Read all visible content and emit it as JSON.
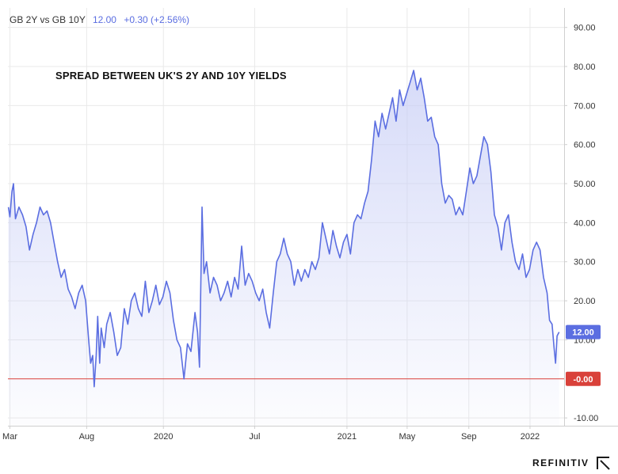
{
  "legend": {
    "symbol": "GB 2Y vs GB 10Y",
    "last": "12.00",
    "change": "+0.30 (+2.56%)"
  },
  "brand": "REFINITIV",
  "colors": {
    "line": "#5b6ee1",
    "fill_top": "#c9cff6",
    "zero_line": "#d9413a",
    "last_badge": "#5b6ee1",
    "zero_badge": "#d9413a",
    "grid": "#e9e9e9"
  },
  "chart_data": {
    "type": "area",
    "title": "SPREAD BETWEEN UK'S 2Y AND 10Y YIELDS",
    "xlabel": "",
    "ylabel": "",
    "ylim": [
      -12,
      95
    ],
    "yticks": [
      "90.00",
      "80.00",
      "70.00",
      "60.00",
      "50.00",
      "40.00",
      "30.00",
      "20.00",
      "10.00",
      "-10.00"
    ],
    "ytick_values": [
      90,
      80,
      70,
      60,
      50,
      40,
      30,
      20,
      10,
      -10
    ],
    "xlim": [
      "2019-02-25",
      "2022-03-10"
    ],
    "xticks": [
      {
        "label": "Mar",
        "date": "2019-03-01"
      },
      {
        "label": "Aug",
        "date": "2019-08-01"
      },
      {
        "label": "2020",
        "date": "2020-01-01"
      },
      {
        "label": "Jul",
        "date": "2020-07-01"
      },
      {
        "label": "2021",
        "date": "2021-01-01"
      },
      {
        "label": "May",
        "date": "2021-05-01"
      },
      {
        "label": "Sep",
        "date": "2021-09-01"
      },
      {
        "label": "2022",
        "date": "2022-01-01"
      }
    ],
    "last_value": "12.00",
    "zero_label": "-0.00",
    "reference_line": 0,
    "grid": true,
    "series": [
      {
        "points": [
          [
            "2019-02-26",
            44
          ],
          [
            "2019-03-01",
            41.5
          ],
          [
            "2019-03-05",
            48
          ],
          [
            "2019-03-08",
            50
          ],
          [
            "2019-03-12",
            41
          ],
          [
            "2019-03-19",
            44
          ],
          [
            "2019-03-26",
            42
          ],
          [
            "2019-04-02",
            39
          ],
          [
            "2019-04-09",
            33
          ],
          [
            "2019-04-16",
            37
          ],
          [
            "2019-04-23",
            40
          ],
          [
            "2019-04-30",
            44
          ],
          [
            "2019-05-07",
            42
          ],
          [
            "2019-05-14",
            43
          ],
          [
            "2019-05-21",
            40
          ],
          [
            "2019-05-28",
            35
          ],
          [
            "2019-06-04",
            30
          ],
          [
            "2019-06-11",
            26
          ],
          [
            "2019-06-18",
            28
          ],
          [
            "2019-06-25",
            23
          ],
          [
            "2019-07-02",
            21
          ],
          [
            "2019-07-09",
            18
          ],
          [
            "2019-07-16",
            22
          ],
          [
            "2019-07-23",
            24
          ],
          [
            "2019-07-30",
            20
          ],
          [
            "2019-08-05",
            10
          ],
          [
            "2019-08-09",
            4
          ],
          [
            "2019-08-13",
            6
          ],
          [
            "2019-08-16",
            -2
          ],
          [
            "2019-08-20",
            6
          ],
          [
            "2019-08-23",
            16
          ],
          [
            "2019-08-27",
            4
          ],
          [
            "2019-08-30",
            13
          ],
          [
            "2019-09-05",
            8
          ],
          [
            "2019-09-10",
            14
          ],
          [
            "2019-09-17",
            17
          ],
          [
            "2019-09-24",
            12
          ],
          [
            "2019-10-01",
            6
          ],
          [
            "2019-10-08",
            8
          ],
          [
            "2019-10-15",
            18
          ],
          [
            "2019-10-22",
            14
          ],
          [
            "2019-10-29",
            20
          ],
          [
            "2019-11-05",
            22
          ],
          [
            "2019-11-12",
            18
          ],
          [
            "2019-11-19",
            16
          ],
          [
            "2019-11-26",
            25
          ],
          [
            "2019-12-03",
            17
          ],
          [
            "2019-12-10",
            20
          ],
          [
            "2019-12-17",
            24
          ],
          [
            "2019-12-24",
            19
          ],
          [
            "2019-12-31",
            21
          ],
          [
            "2020-01-07",
            25
          ],
          [
            "2020-01-14",
            22
          ],
          [
            "2020-01-21",
            15
          ],
          [
            "2020-01-28",
            10
          ],
          [
            "2020-02-04",
            8
          ],
          [
            "2020-02-11",
            0
          ],
          [
            "2020-02-18",
            9
          ],
          [
            "2020-02-25",
            7
          ],
          [
            "2020-03-04",
            17
          ],
          [
            "2020-03-09",
            12
          ],
          [
            "2020-03-13",
            3
          ],
          [
            "2020-03-18",
            44
          ],
          [
            "2020-03-22",
            27
          ],
          [
            "2020-03-27",
            30
          ],
          [
            "2020-04-03",
            22
          ],
          [
            "2020-04-10",
            26
          ],
          [
            "2020-04-17",
            24
          ],
          [
            "2020-04-24",
            20
          ],
          [
            "2020-05-01",
            22
          ],
          [
            "2020-05-08",
            25
          ],
          [
            "2020-05-15",
            21
          ],
          [
            "2020-05-22",
            26
          ],
          [
            "2020-05-29",
            23
          ],
          [
            "2020-06-05",
            34
          ],
          [
            "2020-06-12",
            24
          ],
          [
            "2020-06-19",
            27
          ],
          [
            "2020-06-26",
            25
          ],
          [
            "2020-07-03",
            22
          ],
          [
            "2020-07-10",
            20
          ],
          [
            "2020-07-17",
            23
          ],
          [
            "2020-07-24",
            17
          ],
          [
            "2020-07-31",
            13
          ],
          [
            "2020-08-07",
            22
          ],
          [
            "2020-08-14",
            30
          ],
          [
            "2020-08-21",
            32
          ],
          [
            "2020-08-28",
            36
          ],
          [
            "2020-09-04",
            32
          ],
          [
            "2020-09-11",
            30
          ],
          [
            "2020-09-18",
            24
          ],
          [
            "2020-09-25",
            28
          ],
          [
            "2020-10-02",
            25
          ],
          [
            "2020-10-09",
            28
          ],
          [
            "2020-10-16",
            26
          ],
          [
            "2020-10-23",
            30
          ],
          [
            "2020-10-30",
            28
          ],
          [
            "2020-11-06",
            31
          ],
          [
            "2020-11-13",
            40
          ],
          [
            "2020-11-20",
            36
          ],
          [
            "2020-11-27",
            32
          ],
          [
            "2020-12-04",
            38
          ],
          [
            "2020-12-11",
            34
          ],
          [
            "2020-12-18",
            31
          ],
          [
            "2020-12-25",
            35
          ],
          [
            "2021-01-01",
            37
          ],
          [
            "2021-01-08",
            32
          ],
          [
            "2021-01-15",
            40
          ],
          [
            "2021-01-22",
            42
          ],
          [
            "2021-01-29",
            41
          ],
          [
            "2021-02-05",
            45
          ],
          [
            "2021-02-12",
            48
          ],
          [
            "2021-02-19",
            56
          ],
          [
            "2021-02-26",
            66
          ],
          [
            "2021-03-05",
            62
          ],
          [
            "2021-03-12",
            68
          ],
          [
            "2021-03-19",
            64
          ],
          [
            "2021-03-26",
            68
          ],
          [
            "2021-04-02",
            72
          ],
          [
            "2021-04-09",
            66
          ],
          [
            "2021-04-16",
            74
          ],
          [
            "2021-04-23",
            70
          ],
          [
            "2021-04-30",
            73
          ],
          [
            "2021-05-07",
            76
          ],
          [
            "2021-05-14",
            79
          ],
          [
            "2021-05-21",
            74
          ],
          [
            "2021-05-28",
            77
          ],
          [
            "2021-06-04",
            72
          ],
          [
            "2021-06-11",
            66
          ],
          [
            "2021-06-18",
            67
          ],
          [
            "2021-06-25",
            62
          ],
          [
            "2021-07-02",
            60
          ],
          [
            "2021-07-09",
            50
          ],
          [
            "2021-07-16",
            45
          ],
          [
            "2021-07-23",
            47
          ],
          [
            "2021-07-30",
            46
          ],
          [
            "2021-08-06",
            42
          ],
          [
            "2021-08-13",
            44
          ],
          [
            "2021-08-20",
            42
          ],
          [
            "2021-08-27",
            48
          ],
          [
            "2021-09-03",
            54
          ],
          [
            "2021-09-10",
            50
          ],
          [
            "2021-09-17",
            52
          ],
          [
            "2021-09-24",
            57
          ],
          [
            "2021-10-01",
            62
          ],
          [
            "2021-10-08",
            60
          ],
          [
            "2021-10-15",
            53
          ],
          [
            "2021-10-22",
            42
          ],
          [
            "2021-10-29",
            39
          ],
          [
            "2021-11-05",
            33
          ],
          [
            "2021-11-12",
            40
          ],
          [
            "2021-11-19",
            42
          ],
          [
            "2021-11-26",
            35
          ],
          [
            "2021-12-03",
            30
          ],
          [
            "2021-12-10",
            28
          ],
          [
            "2021-12-17",
            32
          ],
          [
            "2021-12-24",
            26
          ],
          [
            "2021-12-31",
            28
          ],
          [
            "2022-01-07",
            33
          ],
          [
            "2022-01-14",
            35
          ],
          [
            "2022-01-21",
            33
          ],
          [
            "2022-01-28",
            26
          ],
          [
            "2022-02-04",
            22
          ],
          [
            "2022-02-09",
            15
          ],
          [
            "2022-02-14",
            14
          ],
          [
            "2022-02-18",
            8
          ],
          [
            "2022-02-21",
            4
          ],
          [
            "2022-02-24",
            11
          ],
          [
            "2022-02-28",
            12
          ]
        ]
      }
    ]
  }
}
